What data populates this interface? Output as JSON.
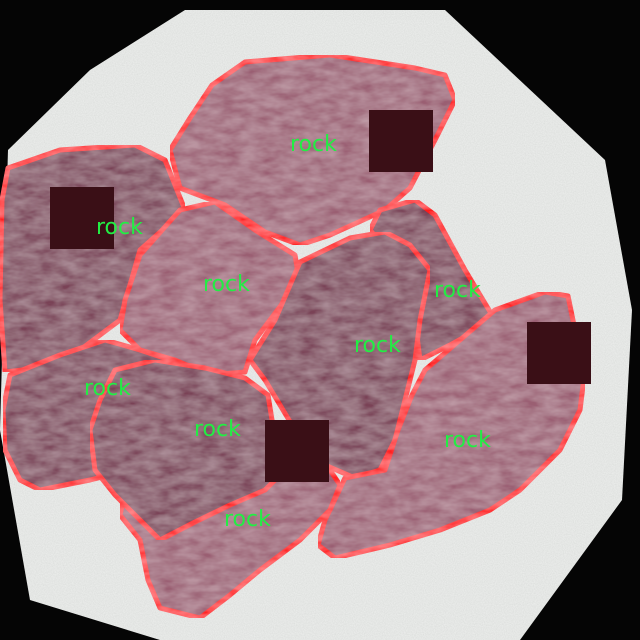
{
  "scene": {
    "background_color": "#050505",
    "tray_color": "#eef0ee",
    "rock_fill": "#9a5e72",
    "rock_fill_dark": "#7a4257",
    "outline_color": "#ff1a1a",
    "label_color": "#22ee44",
    "mask_color": "#3a0f16"
  },
  "detections": [
    {
      "id": "rock-top",
      "label": "rock"
    },
    {
      "id": "rock-left",
      "label": "rock"
    },
    {
      "id": "rock-center-left",
      "label": "rock"
    },
    {
      "id": "rock-right-upper",
      "label": "rock"
    },
    {
      "id": "rock-center",
      "label": "rock"
    },
    {
      "id": "rock-right",
      "label": "rock"
    },
    {
      "id": "rock-lower-left",
      "label": "rock"
    },
    {
      "id": "rock-lower-center",
      "label": "rock"
    },
    {
      "id": "rock-bottom",
      "label": "rock"
    }
  ]
}
